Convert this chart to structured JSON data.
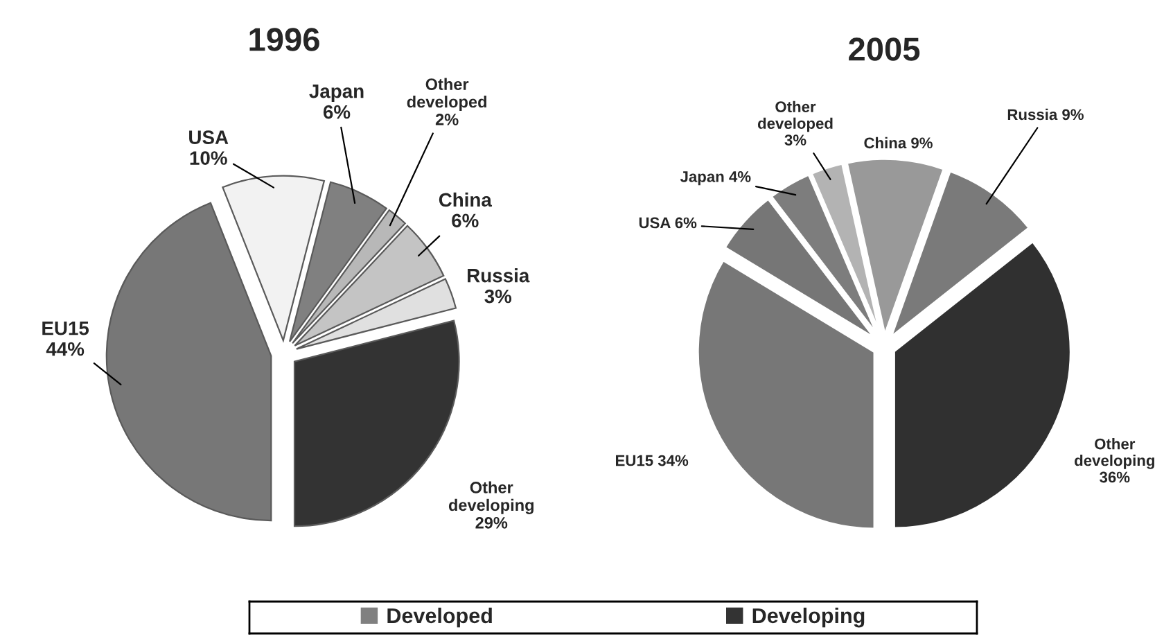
{
  "chart_data": [
    {
      "type": "pie",
      "title": "1996",
      "categories": [
        "EU15",
        "USA",
        "Japan",
        "Other developed",
        "China",
        "Russia",
        "Other developing"
      ],
      "values": [
        44,
        10,
        6,
        2,
        6,
        3,
        29
      ],
      "value_labels": [
        "44%",
        "10%",
        "6%",
        "2%",
        "6%",
        "3%",
        "29%"
      ],
      "colors": [
        "#777777",
        "#f2f2f2",
        "#808080",
        "#b8b8b8",
        "#c4c4c4",
        "#e0e0e0",
        "#333333"
      ]
    },
    {
      "type": "pie",
      "title": "2005",
      "categories": [
        "EU15",
        "USA",
        "Japan",
        "Other developed",
        "China",
        "Russia",
        "Other developing"
      ],
      "values": [
        34,
        6,
        4,
        3,
        9,
        9,
        36
      ],
      "value_labels": [
        "34%",
        "6%",
        "4%",
        "3%",
        "9%",
        "9%",
        "36%"
      ],
      "colors": [
        "#777777",
        "#767676",
        "#7d7d7d",
        "#b3b3b3",
        "#999999",
        "#7a7a7a",
        "#303030"
      ]
    },
    {
      "type": "other",
      "series": [
        {
          "name": "Developed",
          "color": "#808080"
        },
        {
          "name": "Developing",
          "color": "#333333"
        }
      ],
      "legend": "bottom"
    }
  ]
}
